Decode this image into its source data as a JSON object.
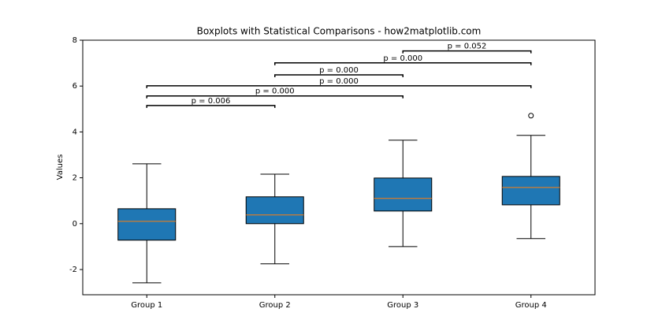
{
  "chart_data": {
    "type": "box",
    "title": "Boxplots with Statistical Comparisons - how2matplotlib.com",
    "y_label": "Values",
    "categories": [
      "Group 1",
      "Group 2",
      "Group 3",
      "Group 4"
    ],
    "boxes": [
      {
        "whisker_low": -2.58,
        "q1": -0.72,
        "median": 0.1,
        "q3": 0.65,
        "whisker_high": 2.61,
        "outliers": []
      },
      {
        "whisker_low": -1.75,
        "q1": 0.0,
        "median": 0.38,
        "q3": 1.17,
        "whisker_high": 2.16,
        "outliers": []
      },
      {
        "whisker_low": -1.0,
        "q1": 0.55,
        "median": 1.1,
        "q3": 1.99,
        "whisker_high": 3.64,
        "outliers": []
      },
      {
        "whisker_low": -0.65,
        "q1": 0.82,
        "median": 1.58,
        "q3": 2.06,
        "whisker_high": 3.85,
        "outliers": [
          4.71
        ]
      }
    ],
    "box_color": "#1f77b4",
    "median_color": "#ff7f0e",
    "comparisons": [
      {
        "from": 0,
        "to": 1,
        "y": 5.15,
        "label": "p = 0.006"
      },
      {
        "from": 0,
        "to": 2,
        "y": 5.57,
        "label": "p = 0.000"
      },
      {
        "from": 0,
        "to": 3,
        "y": 6.01,
        "label": "p = 0.000"
      },
      {
        "from": 1,
        "to": 2,
        "y": 6.49,
        "label": "p = 0.000"
      },
      {
        "from": 1,
        "to": 3,
        "y": 7.01,
        "label": "p = 0.000"
      },
      {
        "from": 2,
        "to": 3,
        "y": 7.53,
        "label": "p = 0.052"
      }
    ],
    "ylim": [
      -3.1,
      8.0
    ],
    "yticks": [
      -2,
      0,
      2,
      4,
      6,
      8
    ]
  }
}
